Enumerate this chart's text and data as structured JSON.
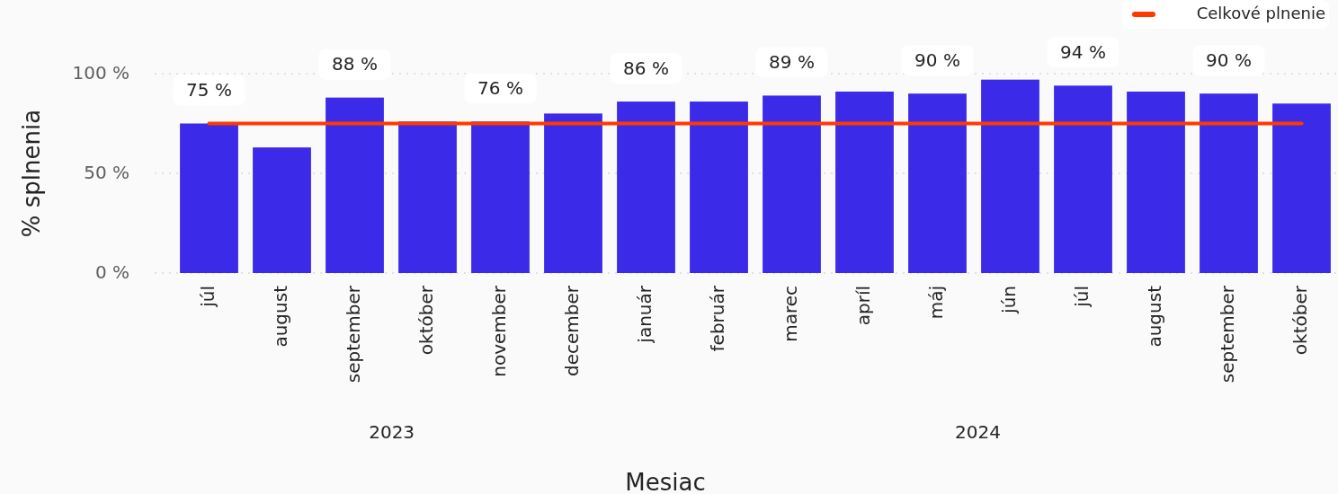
{
  "chart_data": {
    "type": "bar",
    "xlabel": "Mesiac",
    "ylabel": "% splnenia",
    "categories": [
      "júl",
      "august",
      "september",
      "október",
      "november",
      "december",
      "január",
      "február",
      "marec",
      "apríl",
      "máj",
      "jún",
      "júl",
      "august",
      "september",
      "október"
    ],
    "series": [
      {
        "color": "#3b2be8",
        "values": [
          75,
          63,
          88,
          76,
          76,
          80,
          86,
          86,
          89,
          91,
          90,
          97,
          94,
          91,
          90,
          85
        ],
        "value_labels": [
          "75 %",
          null,
          "88 %",
          null,
          "76 %",
          null,
          "86 %",
          null,
          "89 %",
          null,
          "90 %",
          null,
          "94 %",
          null,
          "90 %",
          null
        ]
      },
      {
        "type": "line",
        "name": "Celkové plnenie",
        "color": "#ff3a00",
        "values": [
          75,
          75,
          75,
          75,
          75,
          75,
          75,
          75,
          75,
          75,
          75,
          75,
          75,
          75,
          75,
          75
        ]
      }
    ],
    "ylim": [
      0,
      100
    ],
    "yticks": [
      {
        "value": 0,
        "label": "0 %"
      },
      {
        "value": 50,
        "label": "50 %"
      },
      {
        "value": 100,
        "label": "100 %"
      }
    ],
    "grid": "y",
    "legend": "top right",
    "annotations": [
      "2023",
      "2024"
    ]
  }
}
